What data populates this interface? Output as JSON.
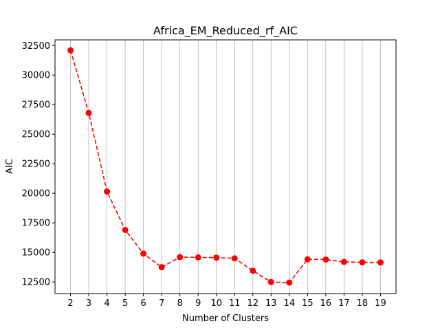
{
  "chart_data": {
    "type": "line",
    "title": "Africa_EM_Reduced_rf_AIC",
    "xlabel": "Number of Clusters",
    "ylabel": "AIC",
    "x": [
      2,
      3,
      4,
      5,
      6,
      7,
      8,
      9,
      10,
      11,
      12,
      13,
      14,
      15,
      16,
      17,
      18,
      19
    ],
    "series": [
      {
        "values": [
          32100,
          26800,
          20150,
          16900,
          14900,
          13750,
          14600,
          14580,
          14560,
          14500,
          13450,
          12500,
          12450,
          14420,
          14400,
          14200,
          14160,
          14150
        ],
        "color": "#ff0000",
        "line_style": "dashed",
        "marker": "circle"
      }
    ],
    "xlim": [
      1.15,
      19.85
    ],
    "ylim": [
      11520,
      32980
    ],
    "xticks": [
      2,
      3,
      4,
      5,
      6,
      7,
      8,
      9,
      10,
      11,
      12,
      13,
      14,
      15,
      16,
      17,
      18,
      19
    ],
    "yticks": [
      12500,
      15000,
      17500,
      20000,
      22500,
      25000,
      27500,
      30000,
      32500
    ],
    "grid": "vertical"
  }
}
